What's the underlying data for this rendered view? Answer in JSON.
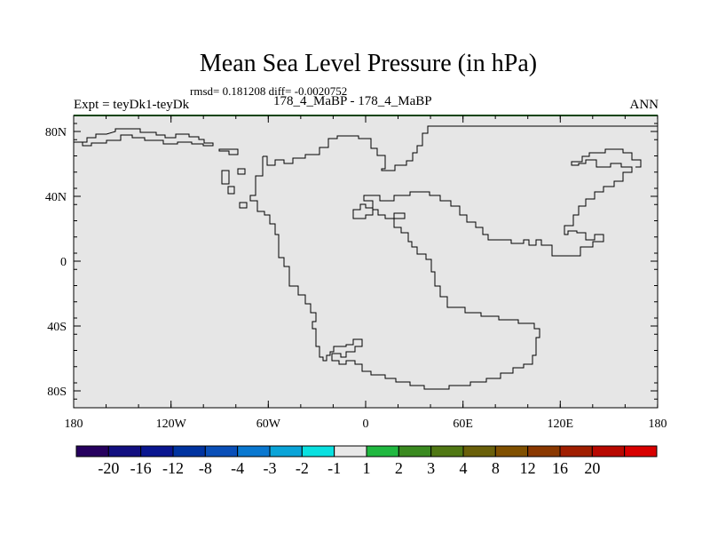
{
  "title": "Mean Sea Level Pressure (in hPa)",
  "stats": "rmsd= 0.181208 diff= -0.0020752",
  "left_label": "Expt = teyDk1-teyDk",
  "center_label": "178_4_MaBP - 178_4_MaBP",
  "right_label": "ANN",
  "lat_ticks": [
    "80N",
    "40N",
    "0",
    "40S",
    "80S"
  ],
  "lon_ticks": [
    "180",
    "120W",
    "60W",
    "0",
    "60E",
    "120E",
    "180"
  ],
  "colors": {
    "map_fill": "#e6e6e6",
    "coastline": "#000000",
    "frame_top": "#1f8a1f"
  },
  "colorbar": {
    "colors": [
      "#26005e",
      "#120f80",
      "#0a1690",
      "#0033a0",
      "#0a4fb8",
      "#0a78d0",
      "#0aa4d8",
      "#0ae0e0",
      "#e8e8e8",
      "#20b840",
      "#3a8a20",
      "#507814",
      "#6a600a",
      "#805000",
      "#8a3800",
      "#a01e00",
      "#b80800",
      "#d80000"
    ],
    "labels": [
      "-20",
      "-16",
      "-12",
      "-8",
      "-4",
      "-3",
      "-2",
      "-1",
      "1",
      "2",
      "3",
      "4",
      "8",
      "12",
      "16",
      "20"
    ]
  }
}
